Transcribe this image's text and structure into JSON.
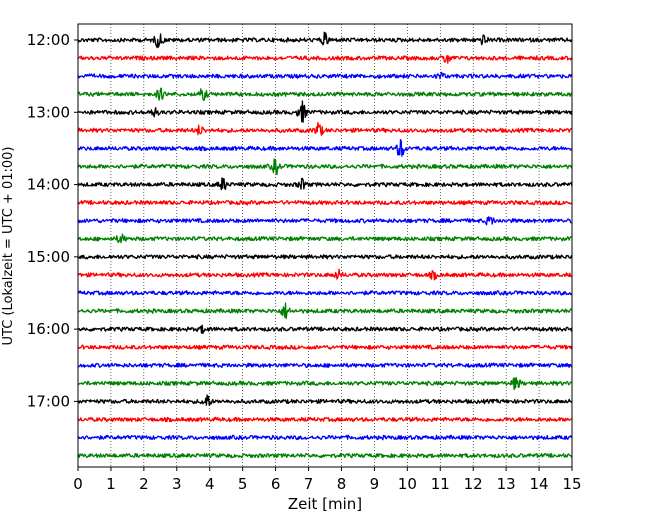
{
  "chart_data": {
    "type": "line",
    "title": "",
    "xlabel": "Zeit  [min]",
    "ylabel": "UTC (Lokalzeit = UTC + 01:00)",
    "xlim": [
      0,
      15
    ],
    "xticks": [
      "0",
      "1",
      "2",
      "3",
      "4",
      "5",
      "6",
      "7",
      "8",
      "9",
      "10",
      "11",
      "12",
      "13",
      "14",
      "15"
    ],
    "yticks": [
      {
        "label": "12:00",
        "trace": 0
      },
      {
        "label": "13:00",
        "trace": 4
      },
      {
        "label": "14:00",
        "trace": 8
      },
      {
        "label": "15:00",
        "trace": 12
      },
      {
        "label": "16:00",
        "trace": 16
      },
      {
        "label": "17:00",
        "trace": 20
      }
    ],
    "grid": "vertical-dotted",
    "trace_colors": [
      "#000000",
      "#ff0000",
      "#0000ff",
      "#008000"
    ],
    "trace_count": 24,
    "events": [
      {
        "trace": 0,
        "t": 2.45,
        "amp": 7
      },
      {
        "trace": 0,
        "t": 7.5,
        "amp": 6
      },
      {
        "trace": 0,
        "t": 12.3,
        "amp": 4
      },
      {
        "trace": 1,
        "t": 11.2,
        "amp": 5
      },
      {
        "trace": 2,
        "t": 11.0,
        "amp": 3
      },
      {
        "trace": 3,
        "t": 2.5,
        "amp": 5
      },
      {
        "trace": 3,
        "t": 3.8,
        "amp": 5
      },
      {
        "trace": 4,
        "t": 6.8,
        "amp": 10
      },
      {
        "trace": 4,
        "t": 2.3,
        "amp": 4
      },
      {
        "trace": 5,
        "t": 7.3,
        "amp": 7
      },
      {
        "trace": 5,
        "t": 3.7,
        "amp": 4
      },
      {
        "trace": 6,
        "t": 9.8,
        "amp": 9
      },
      {
        "trace": 7,
        "t": 6.0,
        "amp": 7
      },
      {
        "trace": 8,
        "t": 4.4,
        "amp": 6
      },
      {
        "trace": 8,
        "t": 6.8,
        "amp": 5
      },
      {
        "trace": 10,
        "t": 12.5,
        "amp": 4
      },
      {
        "trace": 11,
        "t": 1.3,
        "amp": 4
      },
      {
        "trace": 13,
        "t": 7.9,
        "amp": 4
      },
      {
        "trace": 13,
        "t": 10.8,
        "amp": 3
      },
      {
        "trace": 15,
        "t": 6.3,
        "amp": 7
      },
      {
        "trace": 16,
        "t": 3.8,
        "amp": 3
      },
      {
        "trace": 19,
        "t": 13.3,
        "amp": 6
      },
      {
        "trace": 20,
        "t": 3.9,
        "amp": 7
      }
    ]
  }
}
